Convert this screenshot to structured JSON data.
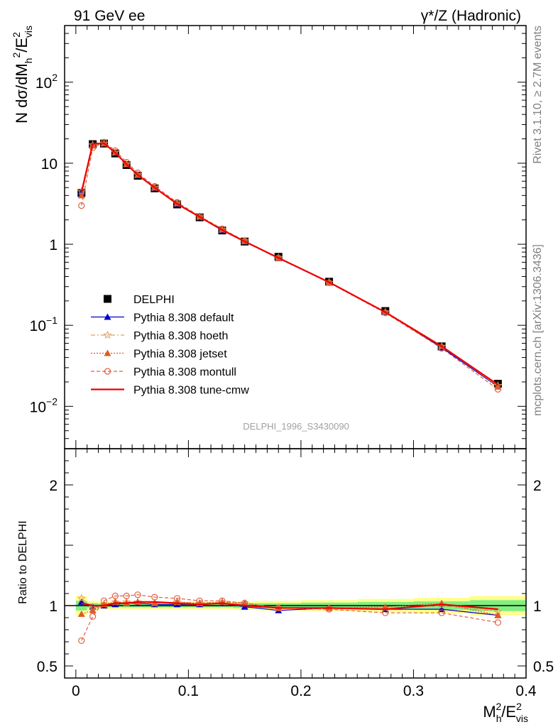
{
  "header": {
    "left": "91 GeV ee",
    "right": "γ*/Z (Hadronic)"
  },
  "side_labels": {
    "rivet": "Rivet 3.1.10, ≥ 2.7M events",
    "mcplots": "mcplots.cern.ch [arXiv:1306.3436]"
  },
  "watermark": "DELPHI_1996_S3430090",
  "chart_data": [
    {
      "type": "scatter",
      "panel": "main",
      "title": "",
      "ylabel": "N dσ/dM_h^2/E_vis^2",
      "yscale": "log",
      "ylim": [
        0.003,
        500
      ],
      "xlim": [
        -0.01,
        0.4
      ],
      "y_ticks": [
        {
          "value": 0.01,
          "label": "10",
          "exp": "−2"
        },
        {
          "value": 0.1,
          "label": "10",
          "exp": "−1"
        },
        {
          "value": 1,
          "label": "1",
          "exp": ""
        },
        {
          "value": 10,
          "label": "10",
          "exp": ""
        },
        {
          "value": 100,
          "label": "10",
          "exp": "2"
        }
      ],
      "legend_position": "lower-left",
      "x": [
        0.005,
        0.015,
        0.025,
        0.035,
        0.045,
        0.055,
        0.07,
        0.09,
        0.11,
        0.13,
        0.15,
        0.18,
        0.225,
        0.275,
        0.325,
        0.375
      ],
      "series": [
        {
          "name": "DELPHI",
          "marker": "square",
          "color": "#000000",
          "values": [
            4.3,
            17.2,
            17.5,
            13.2,
            9.5,
            7.0,
            4.9,
            3.1,
            2.15,
            1.48,
            1.08,
            0.7,
            0.345,
            0.15,
            0.055,
            0.019
          ]
        },
        {
          "name": "Pythia 8.308 default",
          "marker": "triangle",
          "color": "#0000cc",
          "dash": "",
          "values": [
            4.4,
            17.0,
            17.6,
            13.4,
            9.7,
            7.1,
            4.95,
            3.15,
            2.18,
            1.5,
            1.08,
            0.67,
            0.338,
            0.145,
            0.053,
            0.0175
          ]
        },
        {
          "name": "Pythia 8.308 hoeth",
          "marker": "star",
          "color": "#e0a060",
          "dash": "6,3,2,3",
          "values": [
            4.5,
            16.8,
            17.6,
            13.6,
            9.8,
            7.2,
            5.0,
            3.2,
            2.18,
            1.52,
            1.1,
            0.68,
            0.338,
            0.146,
            0.055,
            0.018
          ]
        },
        {
          "name": "Pythia 8.308 jetset",
          "marker": "triangle",
          "color": "#e05a20",
          "dash": "2,2",
          "values": [
            4.0,
            16.5,
            17.6,
            13.6,
            9.7,
            7.2,
            5.0,
            3.2,
            2.2,
            1.52,
            1.1,
            0.68,
            0.338,
            0.148,
            0.056,
            0.0175
          ]
        },
        {
          "name": "Pythia 8.308 montull",
          "marker": "circle",
          "color": "#e06040",
          "dash": "5,3",
          "values": [
            3.0,
            15.5,
            18.2,
            14.3,
            10.3,
            7.6,
            5.2,
            3.3,
            2.22,
            1.55,
            1.1,
            0.68,
            0.335,
            0.142,
            0.052,
            0.0162
          ]
        },
        {
          "name": "Pythia 8.308 tune-cmw",
          "marker": "none",
          "color": "#ee0000",
          "dash": "",
          "values": [
            4.4,
            17.4,
            17.6,
            13.5,
            9.7,
            7.2,
            5.0,
            3.15,
            2.17,
            1.5,
            1.08,
            0.68,
            0.34,
            0.145,
            0.055,
            0.0185
          ]
        }
      ]
    },
    {
      "type": "line",
      "panel": "ratio",
      "ylabel": "Ratio to DELPHI",
      "xlabel": "M_h^2/E_vis^2",
      "ylim": [
        0.4,
        2.3
      ],
      "xlim": [
        -0.01,
        0.4
      ],
      "y_ticks": [
        {
          "value": 0.5,
          "label": "0.5"
        },
        {
          "value": 1,
          "label": "1"
        },
        {
          "value": 2,
          "label": "2"
        }
      ],
      "x_ticks": [
        {
          "value": 0,
          "label": "0"
        },
        {
          "value": 0.1,
          "label": "0.1"
        },
        {
          "value": 0.2,
          "label": "0.2"
        },
        {
          "value": 0.3,
          "label": "0.3"
        },
        {
          "value": 0.4,
          "label": "0.4"
        }
      ],
      "x": [
        0.005,
        0.015,
        0.025,
        0.035,
        0.045,
        0.055,
        0.07,
        0.09,
        0.11,
        0.13,
        0.15,
        0.18,
        0.225,
        0.275,
        0.325,
        0.375
      ],
      "bands": {
        "bin_edges": [
          0.0,
          0.01,
          0.02,
          0.03,
          0.04,
          0.05,
          0.06,
          0.08,
          0.1,
          0.12,
          0.14,
          0.16,
          0.2,
          0.25,
          0.3,
          0.35,
          0.4
        ],
        "stat_halfwidth": [
          0.04,
          0.02,
          0.015,
          0.015,
          0.015,
          0.015,
          0.015,
          0.015,
          0.015,
          0.015,
          0.02,
          0.02,
          0.025,
          0.03,
          0.035,
          0.045
        ],
        "total_halfwidth": [
          0.08,
          0.04,
          0.03,
          0.03,
          0.03,
          0.03,
          0.03,
          0.03,
          0.03,
          0.03,
          0.035,
          0.04,
          0.045,
          0.055,
          0.065,
          0.08
        ],
        "stat_color": "#80f080",
        "total_color": "#ffff90"
      },
      "series": [
        {
          "name": "Pythia 8.308 default",
          "marker": "triangle",
          "color": "#0000cc",
          "dash": "",
          "values": [
            1.03,
            0.99,
            1.0,
            1.01,
            1.02,
            1.02,
            1.01,
            1.01,
            1.01,
            1.02,
            0.99,
            0.96,
            0.98,
            0.97,
            0.97,
            0.92
          ]
        },
        {
          "name": "Pythia 8.308 hoeth",
          "marker": "star",
          "color": "#e0a060",
          "dash": "6,3,2,3",
          "values": [
            1.06,
            0.98,
            1.01,
            1.03,
            1.03,
            1.03,
            1.02,
            1.03,
            1.02,
            1.03,
            1.02,
            0.98,
            0.98,
            0.98,
            1.0,
            0.95
          ]
        },
        {
          "name": "Pythia 8.308 jetset",
          "marker": "triangle",
          "color": "#e05a20",
          "dash": "2,2",
          "values": [
            0.93,
            0.96,
            1.01,
            1.03,
            1.02,
            1.03,
            1.02,
            1.03,
            1.02,
            1.03,
            1.02,
            0.98,
            0.98,
            0.99,
            1.02,
            0.92
          ]
        },
        {
          "name": "Pythia 8.308 montull",
          "marker": "circle",
          "color": "#e06040",
          "dash": "5,3",
          "values": [
            0.71,
            0.91,
            1.04,
            1.08,
            1.08,
            1.09,
            1.07,
            1.06,
            1.04,
            1.04,
            1.02,
            0.98,
            0.97,
            0.94,
            0.94,
            0.86
          ]
        },
        {
          "name": "Pythia 8.308 tune-cmw",
          "marker": "none",
          "color": "#ee0000",
          "dash": "",
          "values": [
            1.02,
            1.0,
            1.0,
            1.02,
            1.02,
            1.03,
            1.03,
            1.02,
            1.01,
            1.02,
            1.0,
            0.98,
            0.98,
            0.97,
            1.01,
            0.97
          ]
        }
      ]
    }
  ]
}
